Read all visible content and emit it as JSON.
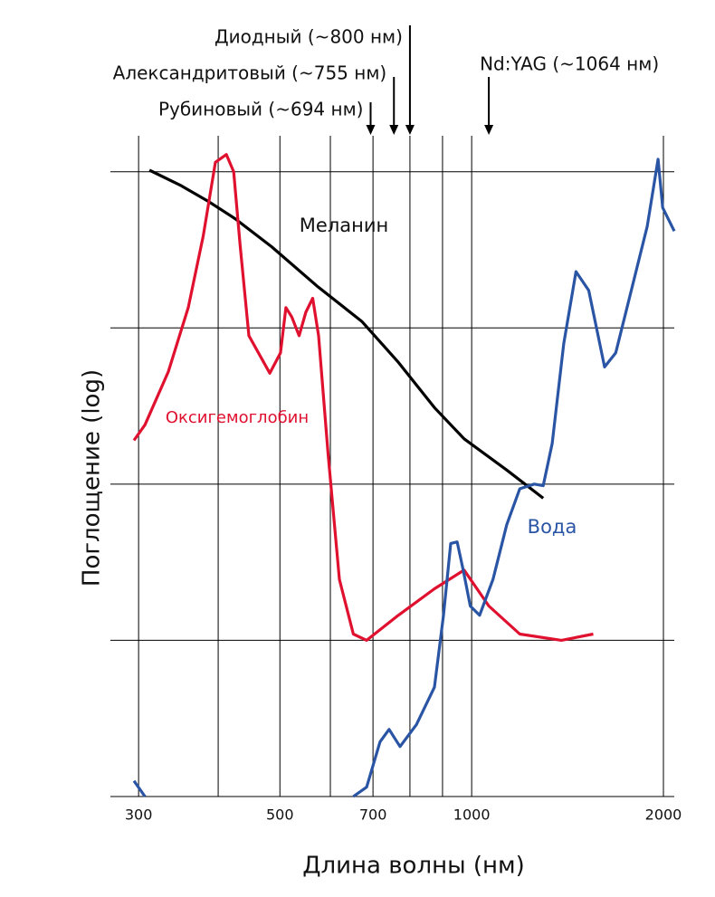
{
  "chart_data": {
    "type": "line",
    "xlabel": "Длина волны (нм)",
    "ylabel": "Поглощение (log)",
    "xscale": "log",
    "xlim": [
      295,
      2080
    ],
    "xticks": [
      300,
      500,
      700,
      1000,
      2000
    ],
    "xgrid": [
      300,
      400,
      500,
      600,
      700,
      800,
      900,
      1000,
      2000
    ],
    "ylim": [
      0,
      4.23
    ],
    "ygrid": [
      0,
      1,
      2,
      3,
      4
    ],
    "series": [
      {
        "name": "Меланин",
        "color": "#000000",
        "x": [
          312,
          350,
          386,
          425,
          485,
          571,
          673,
          767,
          874,
          973,
          1135,
          1295
        ],
        "values": [
          4.01,
          3.91,
          3.81,
          3.7,
          3.52,
          3.27,
          3.04,
          2.78,
          2.49,
          2.29,
          2.09,
          1.91
        ]
      },
      {
        "name": "Оксигемоглобин",
        "color": "#e0102f",
        "x": [
          295,
          307,
          334,
          359,
          379,
          396,
          412,
          423,
          433,
          447,
          482,
          501,
          511,
          522,
          536,
          549,
          563,
          575,
          595,
          620,
          652,
          684,
          767,
          874,
          973,
          1064,
          1190,
          1383,
          1552
        ],
        "values": [
          2.28,
          2.38,
          2.72,
          3.13,
          3.59,
          4.06,
          4.11,
          4.0,
          3.53,
          2.95,
          2.71,
          2.84,
          3.13,
          3.07,
          2.95,
          3.1,
          3.19,
          2.95,
          2.2,
          1.39,
          1.04,
          1.0,
          1.16,
          1.33,
          1.45,
          1.22,
          1.04,
          1.0,
          1.04
        ]
      },
      {
        "name": "Вода",
        "color": "#2a55a5",
        "x": [
          295,
          307,
          null,
          652,
          684,
          718,
          742,
          772,
          819,
          874,
          903,
          927,
          949,
          970,
          995,
          1029,
          1080,
          1135,
          1190,
          1254,
          1295,
          1338,
          1395,
          1458,
          1527,
          1617,
          1683,
          1796,
          1886,
          1962,
          1995,
          2080
        ],
        "values": [
          0.1,
          0,
          null,
          0,
          0.06,
          0.35,
          0.43,
          0.32,
          0.46,
          0.7,
          1.16,
          1.62,
          1.63,
          1.45,
          1.22,
          1.16,
          1.39,
          1.74,
          1.97,
          2.0,
          1.99,
          2.26,
          2.9,
          3.36,
          3.24,
          2.75,
          2.84,
          3.3,
          3.65,
          4.08,
          3.77,
          3.62
        ]
      }
    ],
    "lasers": [
      {
        "label": "Рубиновый (~694 нм)",
        "x": 694
      },
      {
        "label": "Александритовый (~755 нм)",
        "x": 755
      },
      {
        "label": "Диодный (~800 нм)",
        "x": 800
      },
      {
        "label": "Nd:YAG (~1064 нм)",
        "x": 1064
      }
    ]
  }
}
